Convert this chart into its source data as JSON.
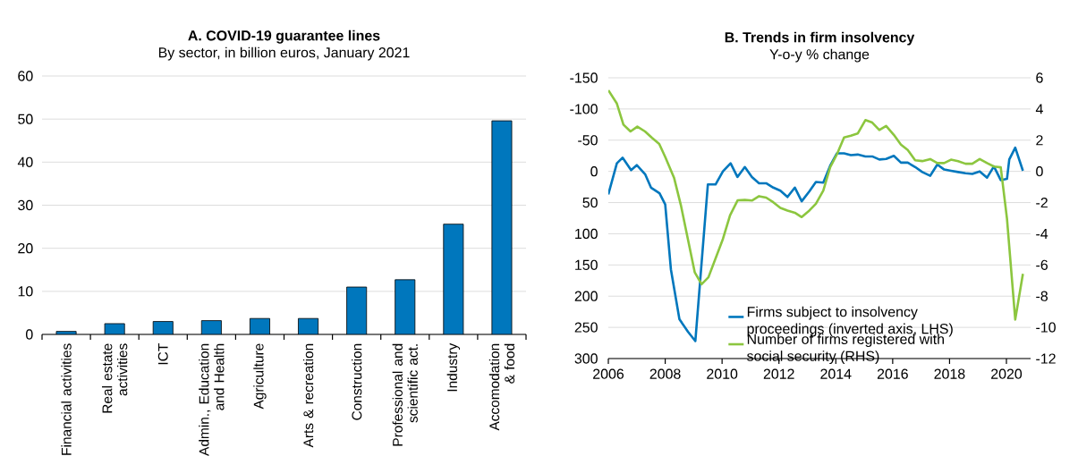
{
  "chart_data": [
    {
      "type": "bar",
      "title": "A. COVID-19 guarantee lines",
      "subtitle": "By sector, in billion euros, January 2021",
      "categories": [
        "Financial activities",
        "Real estate activities",
        "ICT",
        "Admin., Education and Health",
        "Agriculture",
        "Arts & recreation",
        "Construction",
        "Professional and scientific act.",
        "Industry",
        "Accomodation & food"
      ],
      "values": [
        0.7,
        2.5,
        3.0,
        3.2,
        3.7,
        3.7,
        11.0,
        12.7,
        25.6,
        49.6
      ],
      "color": "#0077bd",
      "ylim": [
        0,
        60
      ],
      "yticks": [
        0,
        10,
        20,
        30,
        40,
        50,
        60
      ],
      "grid": "y"
    },
    {
      "type": "line",
      "title": "B. Trends in firm insolvency",
      "subtitle": "Y-o-y % change",
      "xlim": [
        2006,
        2020.85
      ],
      "xticks": [
        2006,
        2008,
        2010,
        2012,
        2014,
        2016,
        2018,
        2020
      ],
      "ylim": [
        300,
        -150
      ],
      "yticks": [
        -150,
        -100,
        -50,
        0,
        50,
        100,
        150,
        200,
        250,
        300
      ],
      "y2lim": [
        -12,
        6
      ],
      "y2ticks": [
        -12,
        -10,
        -8,
        -6,
        -4,
        -2,
        0,
        2,
        4,
        6
      ],
      "grid": "y",
      "legend": "bottom",
      "series": [
        {
          "name": "Firms subject to insolvency proceedings (inverted axis, LHS)",
          "color": "#0077bd",
          "x": [
            2006.0,
            2006.3,
            2006.5,
            2006.8,
            2007.0,
            2007.3,
            2007.5,
            2007.8,
            2008.0,
            2008.2,
            2008.5,
            2008.8,
            2009.06,
            2009.5,
            2009.77,
            2010.03,
            2010.3,
            2010.54,
            2010.8,
            2011.05,
            2011.3,
            2011.55,
            2011.8,
            2012.05,
            2012.3,
            2012.56,
            2012.8,
            2013.07,
            2013.3,
            2013.56,
            2013.8,
            2014.04,
            2014.29,
            2014.53,
            2014.77,
            2015.04,
            2015.28,
            2015.53,
            2015.77,
            2016.04,
            2016.29,
            2016.53,
            2016.79,
            2017.04,
            2017.32,
            2017.57,
            2017.81,
            2018.05,
            2018.3,
            2018.56,
            2018.8,
            2019.06,
            2019.32,
            2019.56,
            2019.8,
            2020.02,
            2020.1,
            2020.31,
            2020.58
          ],
          "values": [
            37,
            -13,
            -22,
            -2,
            -10,
            5,
            26,
            35,
            53,
            157,
            237,
            257,
            272,
            21,
            21,
            0,
            -13,
            9,
            -7,
            9,
            19,
            19,
            26,
            31,
            41,
            26,
            48,
            32,
            17,
            18,
            -9,
            -29,
            -29,
            -26,
            -27,
            -24,
            -24,
            -19,
            -20,
            -25,
            -14,
            -14,
            -7,
            1,
            7,
            -11,
            -3,
            -1,
            1,
            3,
            4,
            0,
            10,
            -8,
            14,
            12,
            -19,
            -38,
            -1
          ]
        },
        {
          "name": "Number of firms registered with social security (RHS)",
          "color": "#8cc63f",
          "axis": "y2",
          "x": [
            2006.0,
            2006.3,
            2006.53,
            2006.78,
            2007.02,
            2007.29,
            2007.53,
            2007.79,
            2008.0,
            2008.31,
            2008.55,
            2009.04,
            2009.28,
            2009.52,
            2010.03,
            2010.28,
            2010.55,
            2010.8,
            2011.05,
            2011.3,
            2011.55,
            2011.8,
            2012.05,
            2012.3,
            2012.56,
            2012.8,
            2013.07,
            2013.3,
            2013.56,
            2013.8,
            2014.04,
            2014.29,
            2014.53,
            2014.77,
            2015.04,
            2015.28,
            2015.53,
            2015.77,
            2016.04,
            2016.29,
            2016.53,
            2016.79,
            2017.04,
            2017.32,
            2017.57,
            2017.81,
            2018.05,
            2018.3,
            2018.56,
            2018.8,
            2019.06,
            2019.32,
            2019.56,
            2019.8,
            2020.02,
            2020.31,
            2020.58
          ],
          "values": [
            5.2,
            4.35,
            3.0,
            2.56,
            2.87,
            2.56,
            2.16,
            1.76,
            0.93,
            -0.4,
            -2.16,
            -6.48,
            -7.23,
            -6.79,
            -4.33,
            -2.82,
            -1.85,
            -1.83,
            -1.87,
            -1.59,
            -1.68,
            -1.98,
            -2.34,
            -2.51,
            -2.65,
            -2.93,
            -2.51,
            -2.07,
            -1.23,
            0.26,
            1.1,
            2.18,
            2.29,
            2.43,
            3.29,
            3.13,
            2.65,
            2.91,
            2.34,
            1.72,
            1.37,
            0.71,
            0.66,
            0.79,
            0.53,
            0.53,
            0.75,
            0.66,
            0.49,
            0.49,
            0.79,
            0.53,
            0.31,
            0.26,
            -3.04,
            -9.5,
            -6.57
          ]
        }
      ]
    }
  ]
}
